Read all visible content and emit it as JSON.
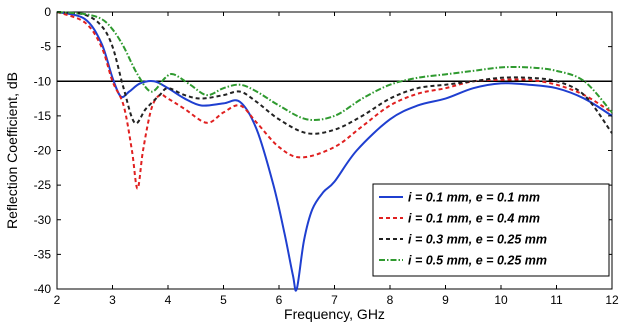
{
  "chart_data": {
    "type": "line",
    "xlabel": "Frequency, GHz",
    "ylabel": "Reflection Coefficient, dB",
    "xlim": [
      2,
      12
    ],
    "ylim": [
      -40,
      0
    ],
    "xticks": [
      "2",
      "3",
      "4",
      "5",
      "6",
      "7",
      "8",
      "9",
      "10",
      "11",
      "12"
    ],
    "yticks": [
      "0",
      "-5",
      "-10",
      "-15",
      "-20",
      "-25",
      "-30",
      "-35",
      "-40"
    ],
    "grid": false,
    "legend_position": "bottom-right",
    "reference_line": {
      "y": -10,
      "color": "#000000"
    },
    "series": [
      {
        "name": "i = 0.1 mm, e = 0.1 mm",
        "color": "#1f3fd0",
        "dash": "solid",
        "x": [
          2.0,
          2.5,
          2.8,
          3.0,
          3.15,
          3.3,
          3.5,
          3.75,
          4.0,
          4.3,
          4.6,
          5.0,
          5.3,
          5.6,
          5.9,
          6.1,
          6.25,
          6.32,
          6.45,
          6.6,
          6.8,
          7.0,
          7.4,
          8.0,
          8.5,
          9.0,
          9.5,
          10.0,
          10.5,
          11.0,
          11.5,
          12.0
        ],
        "y": [
          0.0,
          -1.0,
          -4.5,
          -9.5,
          -12.2,
          -11.5,
          -10.3,
          -10.0,
          -11.0,
          -12.5,
          -13.5,
          -13.2,
          -13.0,
          -17.0,
          -25.0,
          -32.0,
          -38.0,
          -40.0,
          -33.0,
          -28.5,
          -26.0,
          -24.5,
          -20.0,
          -15.5,
          -13.5,
          -12.5,
          -11.0,
          -10.3,
          -10.5,
          -11.0,
          -12.5,
          -15.0
        ]
      },
      {
        "name": "i = 0.1 mm, e = 0.4 mm",
        "color": "#e02020",
        "dash": "4,3",
        "x": [
          2.0,
          2.5,
          2.8,
          3.0,
          3.2,
          3.35,
          3.45,
          3.55,
          3.7,
          3.85,
          4.0,
          4.3,
          4.7,
          5.0,
          5.3,
          5.6,
          6.0,
          6.4,
          7.0,
          7.5,
          8.0,
          8.5,
          9.0,
          9.5,
          10.0,
          10.5,
          11.0,
          11.5,
          12.0
        ],
        "y": [
          0.0,
          -1.5,
          -5.0,
          -10.0,
          -13.5,
          -20.0,
          -25.5,
          -20.0,
          -14.0,
          -12.0,
          -12.5,
          -14.0,
          -16.0,
          -14.5,
          -13.5,
          -16.0,
          -19.5,
          -21.0,
          -19.5,
          -16.5,
          -13.5,
          -11.8,
          -11.0,
          -10.0,
          -9.8,
          -9.8,
          -10.5,
          -12.0,
          -14.5
        ]
      },
      {
        "name": "i = 0.3 mm, e = 0.25 mm",
        "color": "#222222",
        "dash": "4,3",
        "x": [
          2.0,
          2.5,
          2.8,
          3.0,
          3.2,
          3.4,
          3.6,
          3.85,
          4.0,
          4.3,
          4.6,
          5.0,
          5.3,
          5.6,
          6.0,
          6.5,
          7.0,
          7.5,
          8.0,
          8.5,
          9.0,
          9.5,
          10.0,
          10.5,
          11.0,
          11.5,
          12.0
        ],
        "y": [
          0.0,
          -0.4,
          -2.0,
          -5.0,
          -11.0,
          -16.0,
          -14.0,
          -12.0,
          -11.0,
          -12.0,
          -12.5,
          -12.0,
          -11.5,
          -13.0,
          -15.5,
          -17.5,
          -17.0,
          -15.0,
          -12.5,
          -11.0,
          -10.5,
          -10.0,
          -9.5,
          -9.5,
          -10.0,
          -12.0,
          -17.5
        ]
      },
      {
        "name": "i = 0.5 mm, e = 0.25 mm",
        "color": "#2f9a2f",
        "dash": "6,2,1.5,2",
        "x": [
          2.0,
          2.5,
          2.8,
          3.0,
          3.2,
          3.45,
          3.7,
          3.95,
          4.1,
          4.4,
          4.7,
          5.0,
          5.3,
          5.6,
          6.0,
          6.5,
          7.0,
          7.5,
          8.0,
          8.5,
          9.0,
          9.5,
          10.0,
          10.5,
          11.0,
          11.5,
          12.0
        ],
        "y": [
          0.0,
          -0.3,
          -1.0,
          -2.5,
          -5.0,
          -9.0,
          -11.5,
          -9.5,
          -9.0,
          -10.5,
          -12.0,
          -11.0,
          -10.5,
          -11.5,
          -13.5,
          -15.5,
          -15.0,
          -12.5,
          -10.5,
          -9.5,
          -9.0,
          -8.5,
          -8.0,
          -8.0,
          -8.5,
          -10.0,
          -14.5
        ]
      }
    ]
  }
}
